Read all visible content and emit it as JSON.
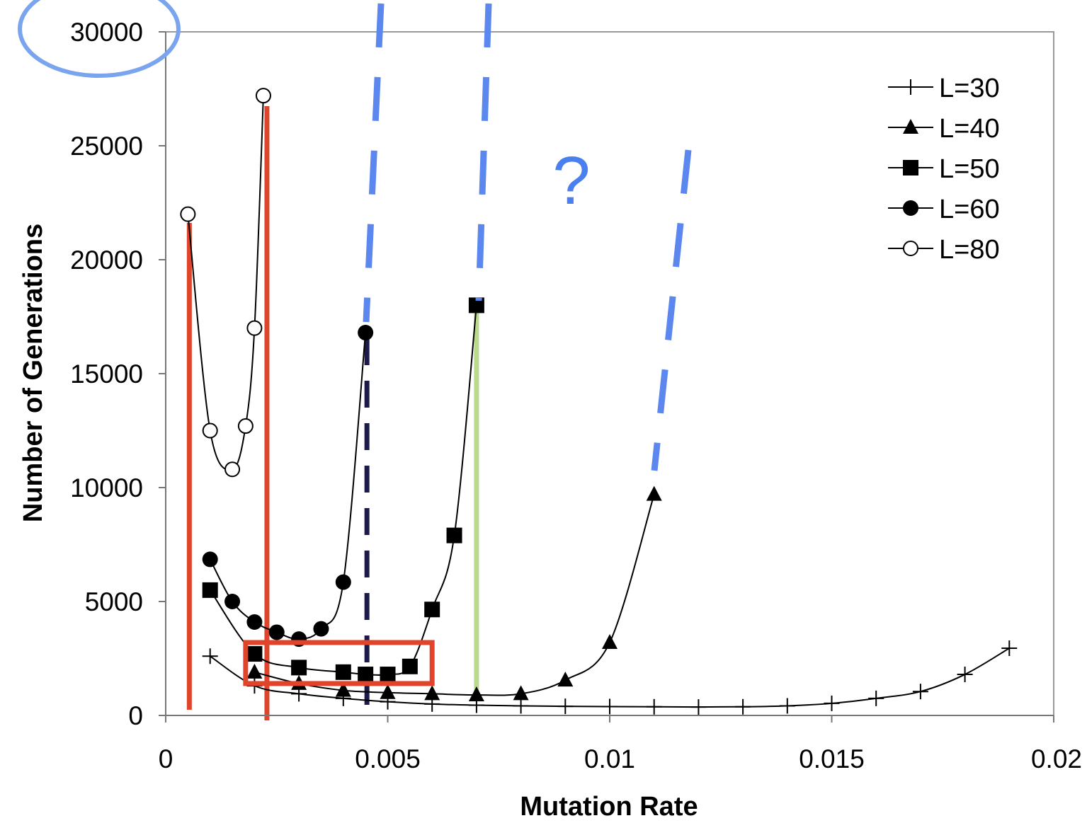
{
  "chart_data": {
    "type": "line",
    "title": "",
    "xlabel": "Mutation Rate",
    "ylabel": "Number of Generations",
    "xlim": [
      0,
      0.02
    ],
    "ylim": [
      0,
      30000
    ],
    "x_ticks": [
      0,
      0.005,
      0.01,
      0.015,
      0.02
    ],
    "x_tick_labels": [
      "0",
      "0.005",
      "0.01",
      "0.015",
      "0.02"
    ],
    "y_ticks": [
      0,
      5000,
      10000,
      15000,
      20000,
      25000,
      30000
    ],
    "y_tick_labels": [
      "0",
      "5000",
      "10000",
      "15000",
      "20000",
      "25000",
      "30000"
    ],
    "grid": false,
    "legend_position": "top-right",
    "series": [
      {
        "name": "L=30",
        "marker": "plus",
        "x": [
          0.001,
          0.002,
          0.003,
          0.004,
          0.005,
          0.006,
          0.007,
          0.008,
          0.009,
          0.01,
          0.011,
          0.012,
          0.013,
          0.014,
          0.015,
          0.016,
          0.017,
          0.018,
          0.019
        ],
        "y": [
          2600,
          1300,
          950,
          750,
          600,
          500,
          450,
          420,
          400,
          390,
          380,
          370,
          380,
          420,
          530,
          750,
          1050,
          1800,
          2950
        ]
      },
      {
        "name": "L=40",
        "marker": "triangle",
        "x": [
          0.002,
          0.003,
          0.004,
          0.005,
          0.006,
          0.007,
          0.008,
          0.009,
          0.01,
          0.011
        ],
        "y": [
          1900,
          1400,
          1100,
          1000,
          950,
          900,
          950,
          1550,
          3200,
          9700
        ]
      },
      {
        "name": "L=50",
        "marker": "square",
        "x": [
          0.001,
          0.002,
          0.003,
          0.004,
          0.0045,
          0.005,
          0.0055,
          0.006,
          0.0065,
          0.007
        ],
        "y": [
          5500,
          2700,
          2100,
          1900,
          1800,
          1800,
          2150,
          4650,
          7900,
          18000
        ]
      },
      {
        "name": "L=60",
        "marker": "circle-filled",
        "x": [
          0.001,
          0.0015,
          0.002,
          0.0025,
          0.003,
          0.0035,
          0.004,
          0.0045
        ],
        "y": [
          6850,
          5000,
          4100,
          3650,
          3350,
          3800,
          5850,
          16800
        ]
      },
      {
        "name": "L=80",
        "marker": "circle-open",
        "x": [
          0.0005,
          0.001,
          0.0015,
          0.0018,
          0.002,
          0.0022
        ],
        "y": [
          22000,
          12500,
          10800,
          12700,
          17000,
          27200
        ]
      }
    ],
    "annotations": {
      "question_mark": "?",
      "colors": {
        "red": "#e0442a",
        "blue_dash": "#5b87ee",
        "navy_dash": "#1c1a4a",
        "green": "#b9d98c",
        "circle": "#7aa5ee"
      },
      "red_vertical_lines_x": [
        0.0005,
        0.0022
      ],
      "red_box": {
        "x0": 0.0018,
        "x1": 0.006,
        "y0": 1400,
        "y1": 3200
      },
      "navy_dashed_line_x": 0.0045,
      "green_line": {
        "x": 0.007,
        "y0": 0,
        "y1": 18000
      }
    }
  }
}
